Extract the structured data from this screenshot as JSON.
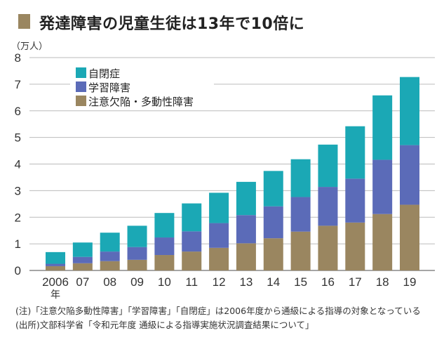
{
  "chart_data": {
    "type": "bar",
    "stacked": true,
    "title": "発達障害の児童生徒は13年で10倍に",
    "ylabel": "（万人）",
    "xlabel": "",
    "ylim": [
      0,
      8
    ],
    "yticks": [
      0,
      1,
      2,
      3,
      4,
      5,
      6,
      7,
      8
    ],
    "grid": true,
    "legend_position": "top-left",
    "categories": [
      "2006",
      "07",
      "08",
      "09",
      "10",
      "11",
      "12",
      "13",
      "14",
      "15",
      "16",
      "17",
      "18",
      "19"
    ],
    "first_category_suffix": "年",
    "series": [
      {
        "name": "注意欠陥・多動性障害",
        "color": "#9a8660",
        "values": [
          0.16,
          0.27,
          0.35,
          0.4,
          0.58,
          0.71,
          0.85,
          1.02,
          1.21,
          1.46,
          1.68,
          1.8,
          2.12,
          2.47
        ]
      },
      {
        "name": "学習障害",
        "color": "#5b6bb8",
        "values": [
          0.09,
          0.24,
          0.36,
          0.48,
          0.66,
          0.76,
          0.93,
          1.06,
          1.2,
          1.3,
          1.46,
          1.65,
          2.04,
          2.24
        ]
      },
      {
        "name": "自閉症",
        "color": "#1ba8b5",
        "values": [
          0.44,
          0.54,
          0.71,
          0.8,
          0.92,
          1.05,
          1.14,
          1.25,
          1.33,
          1.42,
          1.59,
          1.97,
          2.42,
          2.56
        ]
      }
    ],
    "legend_order": [
      2,
      1,
      0
    ],
    "notes": [
      "(注)「注意欠陥多動性障害」「学習障害」「自閉症」は2006年度から通級による指導の対象となっている",
      "(出所)文部科学省「令和元年度 通級による指導実施状況調査結果について」"
    ],
    "title_marker_color": "#9a8660"
  }
}
